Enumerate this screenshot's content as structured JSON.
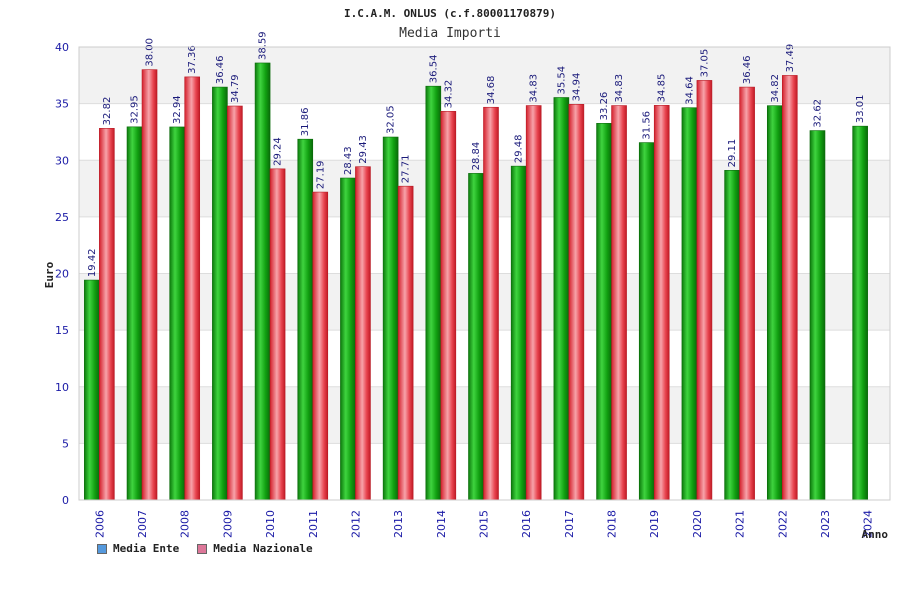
{
  "chart_data": {
    "type": "bar",
    "title": "I.C.A.M. ONLUS (c.f.80001170879)",
    "subtitle": "Media Importi",
    "ylabel": "Euro",
    "xlabel": "Anno",
    "ylim": [
      0,
      40
    ],
    "yticks": [
      0,
      5,
      10,
      15,
      20,
      25,
      30,
      35,
      40
    ],
    "grid": true,
    "legend_position": "bottom-left",
    "categories": [
      "2006",
      "2007",
      "2008",
      "2009",
      "2010",
      "2011",
      "2012",
      "2013",
      "2014",
      "2015",
      "2016",
      "2017",
      "2018",
      "2019",
      "2020",
      "2021",
      "2022",
      "2023",
      "2024"
    ],
    "series": [
      {
        "name": "Media Ente",
        "color": "#1aa01a",
        "legend_color": "#5599dd",
        "values": [
          19.42,
          32.95,
          32.94,
          36.46,
          38.59,
          31.86,
          28.43,
          32.05,
          36.54,
          28.84,
          29.48,
          35.54,
          33.26,
          31.56,
          34.64,
          29.11,
          34.82,
          32.62,
          33.01
        ],
        "labels": [
          "19.42",
          "32.95",
          "32.94",
          "36.46",
          "38.59",
          "31.86",
          "28.43",
          "32.05",
          "36.54",
          "28.84",
          "29.48",
          "35.54",
          "33.26",
          "31.56",
          "34.64",
          "29.11",
          "34.82",
          "32.62",
          "33.01"
        ]
      },
      {
        "name": "Media Nazionale",
        "color": "#e0303a",
        "legend_color": "#dd7799",
        "values": [
          32.82,
          38.0,
          37.36,
          34.79,
          29.24,
          27.19,
          29.43,
          27.71,
          34.32,
          34.68,
          34.83,
          34.94,
          34.83,
          34.85,
          37.05,
          36.46,
          37.49,
          null,
          null
        ],
        "labels": [
          "32.82",
          "38.00",
          "37.36",
          "34.79",
          "29.24",
          "27.19",
          "29.43",
          "27.71",
          "34.32",
          "34.68",
          "34.83",
          "34.94",
          "34.83",
          "34.85",
          "37.05",
          "36.46",
          "37.49",
          null,
          null
        ]
      }
    ]
  }
}
